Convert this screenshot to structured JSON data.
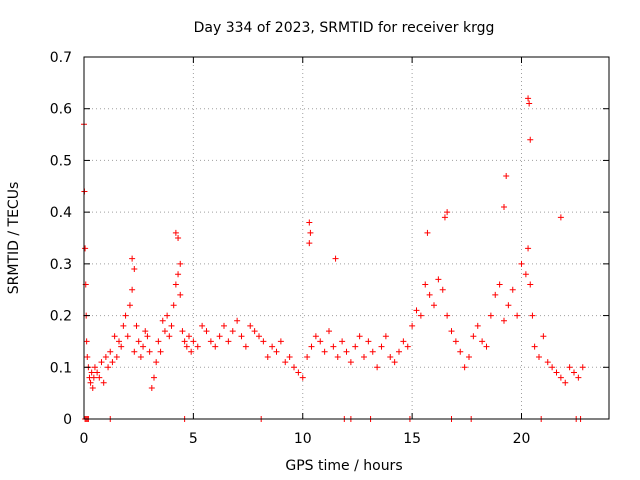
{
  "chart_data": {
    "type": "scatter",
    "title": "Day 334 of 2023, SRMTID for receiver krgg",
    "xlabel": "GPS time / hours",
    "ylabel": "SRMTID / TECUs",
    "xlim": [
      0,
      24
    ],
    "ylim": [
      0,
      0.7
    ],
    "x_ticks": [
      0,
      5,
      10,
      15,
      20
    ],
    "y_ticks": [
      0,
      0.1,
      0.2,
      0.3,
      0.4,
      0.5,
      0.6,
      0.7
    ],
    "x_tick_labels": [
      "0",
      "5",
      "10",
      "15",
      "20"
    ],
    "y_tick_labels": [
      "0",
      "0.1",
      "0.2",
      "0.3",
      "0.4",
      "0.5",
      "0.6",
      "0.7"
    ],
    "grid": true,
    "marker": "+",
    "color": "#ff0000",
    "series": [
      {
        "name": "SRMTID",
        "x": [
          0.0,
          0.02,
          0.05,
          0.08,
          0.1,
          0.12,
          0.15,
          0.2,
          0.25,
          0.3,
          0.35,
          0.4,
          0.45,
          0.5,
          0.6,
          0.7,
          0.8,
          0.9,
          1.0,
          1.1,
          1.2,
          1.3,
          1.4,
          1.5,
          1.6,
          1.7,
          1.8,
          1.9,
          2.0,
          2.1,
          2.2,
          2.3,
          2.4,
          2.5,
          2.6,
          2.7,
          2.8,
          2.9,
          3.0,
          3.1,
          3.2,
          3.3,
          3.4,
          3.5,
          3.6,
          3.7,
          3.8,
          3.9,
          4.0,
          4.1,
          4.2,
          4.3,
          4.4,
          4.5,
          4.6,
          4.7,
          4.8,
          4.9,
          5.0,
          5.2,
          5.4,
          5.6,
          5.8,
          6.0,
          6.2,
          6.4,
          6.6,
          6.8,
          7.0,
          7.2,
          7.4,
          7.6,
          7.8,
          8.0,
          8.2,
          8.4,
          8.6,
          8.8,
          9.0,
          9.2,
          9.4,
          9.6,
          9.8,
          10.0,
          10.2,
          10.3,
          10.4,
          10.6,
          10.8,
          11.0,
          11.2,
          11.4,
          11.6,
          11.8,
          12.0,
          12.2,
          12.4,
          12.6,
          12.8,
          13.0,
          13.2,
          13.4,
          13.6,
          13.8,
          14.0,
          14.2,
          14.4,
          14.6,
          14.8,
          15.0,
          15.2,
          15.4,
          15.6,
          15.8,
          16.0,
          16.2,
          16.4,
          16.6,
          16.8,
          17.0,
          17.2,
          17.4,
          17.6,
          17.8,
          18.0,
          18.2,
          18.4,
          18.6,
          18.8,
          19.0,
          19.2,
          19.4,
          19.6,
          19.8,
          20.0,
          20.2,
          20.3,
          20.4,
          20.5,
          20.6,
          20.8,
          21.0,
          21.2,
          21.4,
          21.6,
          21.8,
          22.0,
          22.2,
          22.4,
          22.6,
          22.8,
          0.05,
          0.1,
          0.15,
          0.2,
          1.2,
          4.6,
          8.1,
          11.9,
          12.2,
          13.1,
          14.9,
          16.8,
          17.7,
          20.9,
          22.5,
          22.7,
          4.2,
          4.3,
          10.3,
          10.35,
          11.5,
          15.7,
          16.5,
          16.6,
          19.3,
          20.3,
          20.35,
          20.4,
          19.2,
          21.8,
          4.4,
          2.2,
          2.3
        ],
        "y": [
          0.57,
          0.44,
          0.33,
          0.26,
          0.2,
          0.15,
          0.12,
          0.1,
          0.08,
          0.07,
          0.09,
          0.06,
          0.08,
          0.1,
          0.09,
          0.08,
          0.11,
          0.07,
          0.12,
          0.1,
          0.13,
          0.11,
          0.16,
          0.12,
          0.15,
          0.14,
          0.18,
          0.2,
          0.16,
          0.22,
          0.25,
          0.13,
          0.18,
          0.15,
          0.12,
          0.14,
          0.17,
          0.16,
          0.13,
          0.06,
          0.08,
          0.11,
          0.15,
          0.13,
          0.19,
          0.17,
          0.2,
          0.16,
          0.18,
          0.22,
          0.26,
          0.28,
          0.24,
          0.17,
          0.15,
          0.14,
          0.16,
          0.13,
          0.15,
          0.14,
          0.18,
          0.17,
          0.15,
          0.14,
          0.16,
          0.18,
          0.15,
          0.17,
          0.19,
          0.16,
          0.14,
          0.18,
          0.17,
          0.16,
          0.15,
          0.12,
          0.14,
          0.13,
          0.15,
          0.11,
          0.12,
          0.1,
          0.09,
          0.08,
          0.12,
          0.34,
          0.14,
          0.16,
          0.15,
          0.13,
          0.17,
          0.14,
          0.12,
          0.15,
          0.13,
          0.11,
          0.14,
          0.16,
          0.12,
          0.15,
          0.13,
          0.1,
          0.14,
          0.16,
          0.12,
          0.11,
          0.13,
          0.15,
          0.14,
          0.18,
          0.21,
          0.2,
          0.26,
          0.24,
          0.22,
          0.27,
          0.25,
          0.2,
          0.17,
          0.15,
          0.13,
          0.1,
          0.12,
          0.16,
          0.18,
          0.15,
          0.14,
          0.2,
          0.24,
          0.26,
          0.19,
          0.22,
          0.25,
          0.2,
          0.3,
          0.28,
          0.33,
          0.26,
          0.2,
          0.14,
          0.12,
          0.16,
          0.11,
          0.1,
          0.09,
          0.08,
          0.07,
          0.1,
          0.09,
          0.08,
          0.1,
          0.0,
          0.0,
          0.0,
          0.0,
          0.0,
          0.0,
          0.0,
          0.0,
          0.0,
          0.0,
          0.0,
          0.0,
          0.0,
          0.0,
          0.0,
          0.0,
          0.36,
          0.35,
          0.38,
          0.36,
          0.31,
          0.36,
          0.39,
          0.4,
          0.47,
          0.62,
          0.61,
          0.54,
          0.41,
          0.39,
          0.3,
          0.31,
          0.29
        ]
      }
    ]
  }
}
